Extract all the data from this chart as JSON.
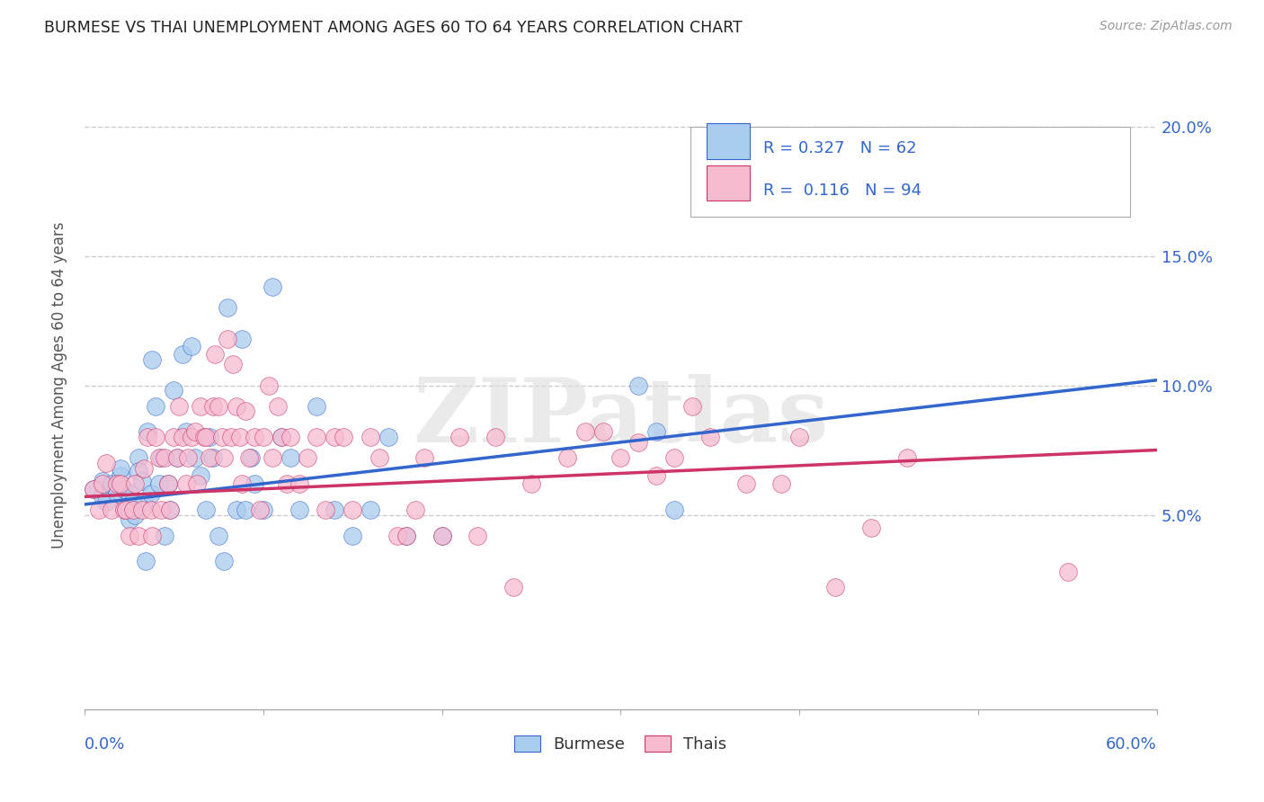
{
  "title": "BURMESE VS THAI UNEMPLOYMENT AMONG AGES 60 TO 64 YEARS CORRELATION CHART",
  "source": "Source: ZipAtlas.com",
  "ylabel": "Unemployment Among Ages 60 to 64 years",
  "xlim": [
    0.0,
    0.6
  ],
  "ylim": [
    -0.025,
    0.225
  ],
  "yticks": [
    0.0,
    0.05,
    0.1,
    0.15,
    0.2
  ],
  "ytick_labels": [
    "",
    "5.0%",
    "10.0%",
    "15.0%",
    "20.0%"
  ],
  "xticks": [
    0.0,
    0.1,
    0.2,
    0.3,
    0.4,
    0.5,
    0.6
  ],
  "title_color": "#222222",
  "source_color": "#999999",
  "grid_color": "#cccccc",
  "burmese_color": "#aaccee",
  "thai_color": "#f7bbd0",
  "burmese_line_color": "#3366cc",
  "thai_line_color": "#cc3366",
  "legend_box_color": "#ffffff",
  "legend_border_color": "#cccccc",
  "legend_text_color": "#3366cc",
  "burmese_R": "0.327",
  "burmese_N": "62",
  "thai_R": "0.116",
  "thai_N": "94",
  "burmese_scatter_x": [
    0.005,
    0.01,
    0.01,
    0.012,
    0.015,
    0.018,
    0.02,
    0.02,
    0.022,
    0.022,
    0.025,
    0.025,
    0.025,
    0.027,
    0.028,
    0.03,
    0.03,
    0.032,
    0.033,
    0.034,
    0.035,
    0.037,
    0.038,
    0.04,
    0.042,
    0.043,
    0.045,
    0.047,
    0.048,
    0.05,
    0.052,
    0.055,
    0.057,
    0.06,
    0.062,
    0.065,
    0.068,
    0.07,
    0.072,
    0.075,
    0.078,
    0.08,
    0.085,
    0.088,
    0.09,
    0.093,
    0.095,
    0.1,
    0.105,
    0.11,
    0.115,
    0.12,
    0.13,
    0.14,
    0.15,
    0.16,
    0.17,
    0.18,
    0.2,
    0.31,
    0.32,
    0.33
  ],
  "burmese_scatter_y": [
    0.06,
    0.063,
    0.057,
    0.055,
    0.062,
    0.058,
    0.065,
    0.068,
    0.06,
    0.053,
    0.058,
    0.052,
    0.048,
    0.055,
    0.05,
    0.072,
    0.067,
    0.063,
    0.055,
    0.032,
    0.082,
    0.058,
    0.11,
    0.092,
    0.062,
    0.072,
    0.042,
    0.062,
    0.052,
    0.098,
    0.072,
    0.112,
    0.082,
    0.115,
    0.072,
    0.065,
    0.052,
    0.08,
    0.072,
    0.042,
    0.032,
    0.13,
    0.052,
    0.118,
    0.052,
    0.072,
    0.062,
    0.052,
    0.138,
    0.08,
    0.072,
    0.052,
    0.092,
    0.052,
    0.042,
    0.052,
    0.08,
    0.042,
    0.042,
    0.1,
    0.082,
    0.052
  ],
  "thai_scatter_x": [
    0.005,
    0.008,
    0.01,
    0.012,
    0.015,
    0.018,
    0.02,
    0.022,
    0.023,
    0.025,
    0.027,
    0.028,
    0.03,
    0.032,
    0.033,
    0.035,
    0.037,
    0.038,
    0.04,
    0.042,
    0.043,
    0.045,
    0.047,
    0.048,
    0.05,
    0.052,
    0.053,
    0.055,
    0.057,
    0.058,
    0.06,
    0.062,
    0.063,
    0.065,
    0.067,
    0.068,
    0.07,
    0.072,
    0.073,
    0.075,
    0.077,
    0.078,
    0.08,
    0.082,
    0.083,
    0.085,
    0.087,
    0.088,
    0.09,
    0.092,
    0.095,
    0.098,
    0.1,
    0.103,
    0.105,
    0.108,
    0.11,
    0.113,
    0.115,
    0.12,
    0.125,
    0.13,
    0.135,
    0.14,
    0.145,
    0.15,
    0.16,
    0.165,
    0.175,
    0.18,
    0.185,
    0.19,
    0.2,
    0.21,
    0.22,
    0.23,
    0.24,
    0.25,
    0.27,
    0.28,
    0.29,
    0.3,
    0.31,
    0.32,
    0.33,
    0.34,
    0.35,
    0.37,
    0.39,
    0.4,
    0.42,
    0.44,
    0.46,
    0.55
  ],
  "thai_scatter_y": [
    0.06,
    0.052,
    0.062,
    0.07,
    0.052,
    0.062,
    0.062,
    0.052,
    0.052,
    0.042,
    0.052,
    0.062,
    0.042,
    0.052,
    0.068,
    0.08,
    0.052,
    0.042,
    0.08,
    0.072,
    0.052,
    0.072,
    0.062,
    0.052,
    0.08,
    0.072,
    0.092,
    0.08,
    0.062,
    0.072,
    0.08,
    0.082,
    0.062,
    0.092,
    0.08,
    0.08,
    0.072,
    0.092,
    0.112,
    0.092,
    0.08,
    0.072,
    0.118,
    0.08,
    0.108,
    0.092,
    0.08,
    0.062,
    0.09,
    0.072,
    0.08,
    0.052,
    0.08,
    0.1,
    0.072,
    0.092,
    0.08,
    0.062,
    0.08,
    0.062,
    0.072,
    0.08,
    0.052,
    0.08,
    0.08,
    0.052,
    0.08,
    0.072,
    0.042,
    0.042,
    0.052,
    0.072,
    0.042,
    0.08,
    0.042,
    0.08,
    0.022,
    0.062,
    0.072,
    0.082,
    0.082,
    0.072,
    0.078,
    0.065,
    0.072,
    0.092,
    0.08,
    0.062,
    0.062,
    0.08,
    0.022,
    0.045,
    0.072,
    0.028
  ],
  "burmese_trend_x": [
    0.0,
    0.6
  ],
  "burmese_trend_y": [
    0.054,
    0.102
  ],
  "thai_trend_x": [
    0.0,
    0.6
  ],
  "thai_trend_y": [
    0.057,
    0.075
  ],
  "watermark_text": "ZIPatlas",
  "figsize": [
    14.06,
    8.92
  ],
  "dpi": 100
}
